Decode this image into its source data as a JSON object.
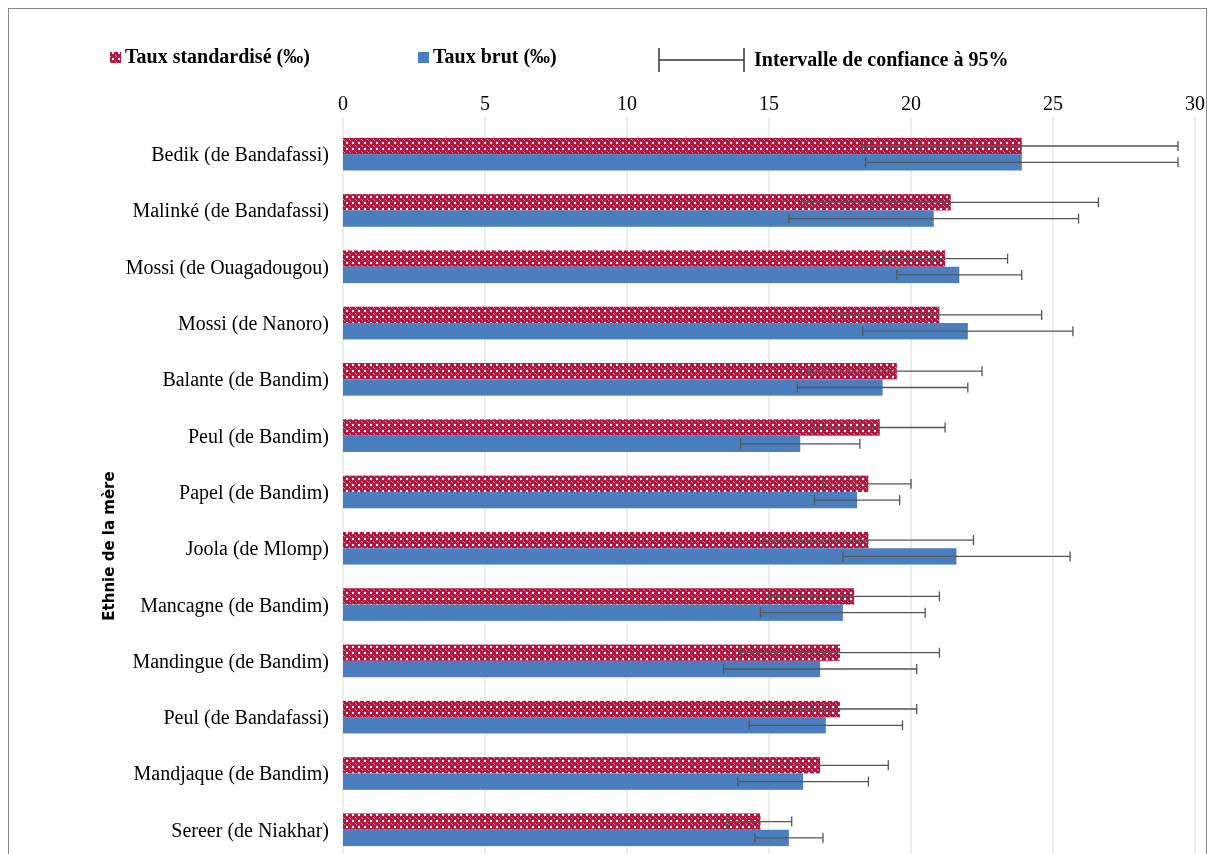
{
  "chart_data": {
    "type": "bar",
    "orientation": "horizontal",
    "ylabel": "Ethnie de la mère",
    "categories": [
      "Bedik (de Bandafassi)",
      "Malinké (de Bandafassi)",
      "Mossi (de Ouagadougou)",
      "Mossi (de Nanoro)",
      "Balante (de Bandim)",
      "Peul (de Bandim)",
      "Papel (de Bandim)",
      "Joola (de Mlomp)",
      "Mancagne (de Bandim)",
      "Mandingue (de Bandim)",
      "Peul (de Bandafassi)",
      "Mandjaque (de Bandim)",
      "Sereer (de Niakhar)"
    ],
    "series": [
      {
        "name": "Taux standardisé (‰)",
        "color": "#b5123e",
        "values": [
          23.9,
          21.4,
          21.2,
          21.0,
          19.5,
          18.9,
          18.5,
          18.5,
          18.0,
          17.5,
          17.5,
          16.8,
          14.7
        ],
        "errors": [
          [
            18.3,
            29.4
          ],
          [
            16.2,
            26.6
          ],
          [
            19.0,
            23.4
          ],
          [
            17.4,
            24.6
          ],
          [
            16.4,
            22.5
          ],
          [
            16.6,
            21.2
          ],
          [
            16.9,
            20.0
          ],
          [
            14.8,
            22.2
          ],
          [
            15.0,
            21.0
          ],
          [
            14.0,
            21.0
          ],
          [
            14.8,
            20.2
          ],
          [
            14.4,
            19.2
          ],
          [
            13.5,
            15.8
          ]
        ]
      },
      {
        "name": "Taux brut (‰)",
        "color": "#4a7ebf",
        "values": [
          23.9,
          20.8,
          21.7,
          22.0,
          19.0,
          16.1,
          18.1,
          21.6,
          17.6,
          16.8,
          17.0,
          16.2,
          15.7
        ],
        "errors": [
          [
            18.4,
            29.4
          ],
          [
            15.7,
            25.9
          ],
          [
            19.5,
            23.9
          ],
          [
            18.3,
            25.7
          ],
          [
            16.0,
            22.0
          ],
          [
            14.0,
            18.2
          ],
          [
            16.6,
            19.6
          ],
          [
            17.6,
            25.6
          ],
          [
            14.7,
            20.5
          ],
          [
            13.4,
            20.2
          ],
          [
            14.3,
            19.7
          ],
          [
            13.9,
            18.5
          ],
          [
            14.5,
            16.9
          ]
        ]
      }
    ],
    "xlim": [
      0,
      30
    ],
    "xticks": [
      0,
      5,
      10,
      15,
      20,
      25,
      30
    ],
    "grid": "x",
    "legend": "top left",
    "annotations": [
      "Intervalle de confiance à 95%"
    ]
  }
}
